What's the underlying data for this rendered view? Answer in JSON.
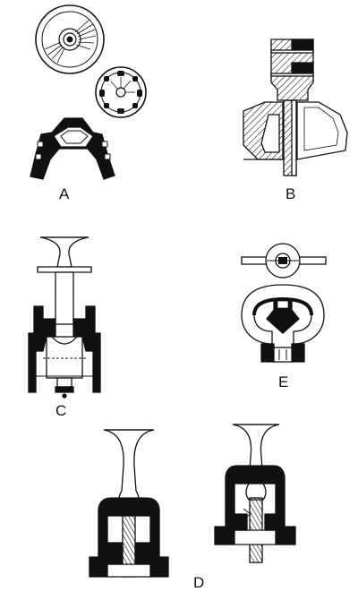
{
  "figure": {
    "labels": {
      "a": "A",
      "b": "B",
      "c": "C",
      "d": "D",
      "e": "E"
    },
    "colors": {
      "ink": "#111111",
      "paper": "#ffffff"
    }
  }
}
